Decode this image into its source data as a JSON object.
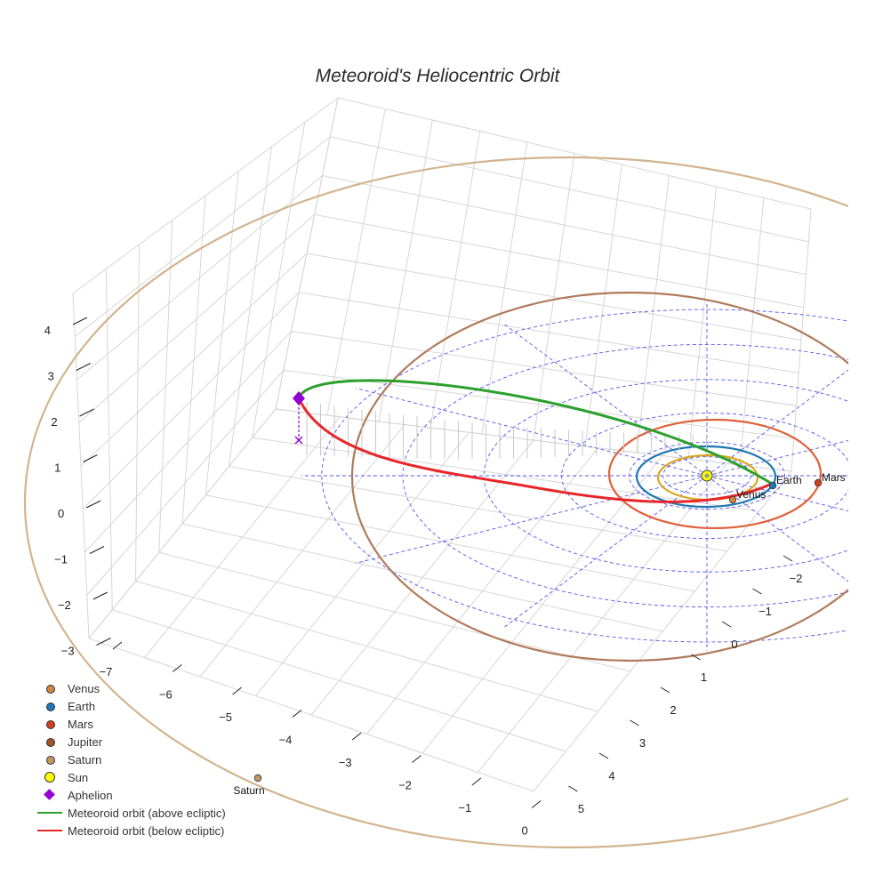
{
  "chart_data": {
    "type": "3d-orbit",
    "title": "Meteoroid's Heliocentric Orbit",
    "axes": {
      "x": {
        "ticks": [
          -7,
          -6,
          -5,
          -4,
          -3,
          -2,
          -1,
          0
        ]
      },
      "y": {
        "ticks": [
          -2,
          -1,
          0,
          1,
          2,
          3,
          4,
          5
        ]
      },
      "z": {
        "ticks": [
          -3,
          -2,
          -1,
          0,
          1,
          2,
          3,
          4
        ]
      }
    },
    "planets": [
      {
        "name": "Venus",
        "a_au": 0.72,
        "color": "#cd853f",
        "orbit_color": "#daa520",
        "label": "Venus"
      },
      {
        "name": "Earth",
        "a_au": 1.0,
        "color": "#1f77b4",
        "orbit_color": "#1f77b4",
        "label": "Earth"
      },
      {
        "name": "Mars",
        "a_au": 1.52,
        "color": "#d2411e",
        "orbit_color": "#e0603a",
        "label": "Mars"
      },
      {
        "name": "Jupiter",
        "a_au": 5.2,
        "color": "#a0522d",
        "orbit_color": "#b07a5a",
        "label": ""
      },
      {
        "name": "Saturn",
        "a_au": 9.5,
        "color": "#c4955f",
        "orbit_color": "#d2b48c",
        "label": "Saturn"
      }
    ],
    "sun": {
      "name": "Sun",
      "color": "#ffff00"
    },
    "aphelion": {
      "name": "Aphelion",
      "color": "#9400d3",
      "x": -6.1,
      "y": 1.0,
      "z": 1.3
    },
    "meteoroid": {
      "above": "Meteoroid orbit (above ecliptic)",
      "below": "Meteoroid orbit (below ecliptic)",
      "above_color": "#2ca02c",
      "below_color": "#e8262a"
    },
    "legend": [
      {
        "label": "Venus",
        "kind": "dot",
        "color": "#cd853f"
      },
      {
        "label": "Earth",
        "kind": "dot",
        "color": "#1f77b4"
      },
      {
        "label": "Mars",
        "kind": "dot",
        "color": "#d2411e"
      },
      {
        "label": "Jupiter",
        "kind": "dot",
        "color": "#a0522d"
      },
      {
        "label": "Saturn",
        "kind": "dot",
        "color": "#c4955f"
      },
      {
        "label": "Sun",
        "kind": "sun",
        "color": "#ffff00"
      },
      {
        "label": "Aphelion",
        "kind": "diamond",
        "color": "#9400d3"
      },
      {
        "label": "Meteoroid orbit (above ecliptic)",
        "kind": "line",
        "color": "#2ca02c"
      },
      {
        "label": "Meteoroid orbit (below ecliptic)",
        "kind": "line",
        "color": "#e8262a"
      }
    ]
  }
}
